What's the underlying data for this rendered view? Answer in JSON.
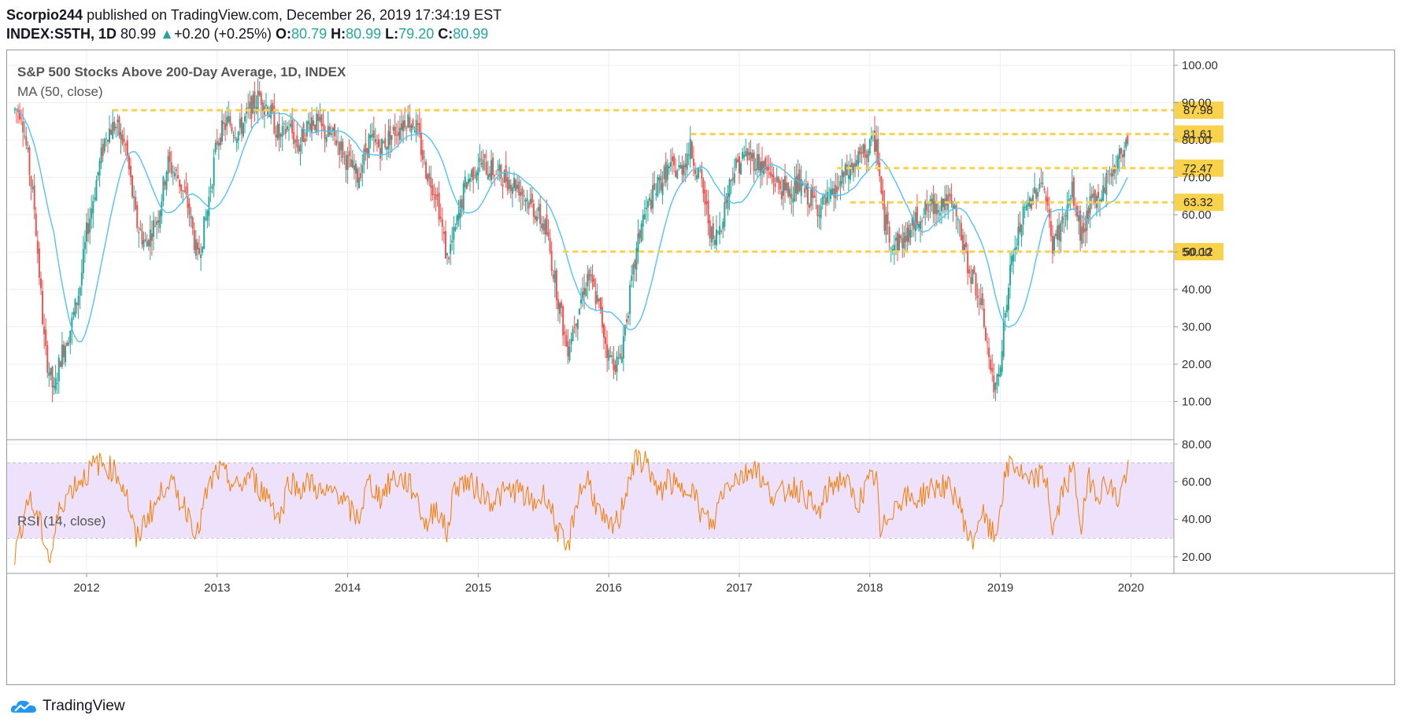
{
  "header": {
    "author": "Scorpio244",
    "published": "published on TradingView.com, December 26, 2019 17:34:19 EST",
    "symbol": "INDEX:S5TH, 1D",
    "last": "80.99",
    "change_arrow": "▲",
    "change": "+0.20 (+0.25%)",
    "o_label": "O:",
    "o": "80.79",
    "h_label": "H:",
    "h": "80.99",
    "l_label": "L:",
    "l": "79.20",
    "c_label": "C:",
    "c": "80.99"
  },
  "brand": {
    "name": "TradingView",
    "icon": "tradingview-cloud-icon"
  },
  "colors": {
    "up": "#26a69a",
    "down": "#ef5350",
    "ma": "#4fc3f7",
    "level": "#f9d24c",
    "rsi": "#f57c00",
    "rsi_band": "#ede1fb"
  },
  "chart_data": [
    {
      "type": "candlestick",
      "title": "S&P 500 Stocks Above 200-Day Average, 1D, INDEX",
      "indicator": "MA (50, close)",
      "x_ticks": [
        "2012",
        "2013",
        "2014",
        "2015",
        "2016",
        "2017",
        "2018",
        "2019",
        "2020"
      ],
      "ylim": [
        0,
        104
      ],
      "y_ticks": [
        "100.00",
        "90.00",
        "80.00",
        "70.00",
        "60.00",
        "50.00",
        "40.00",
        "30.00",
        "20.00",
        "10.00"
      ],
      "horizontal_levels": [
        {
          "value": 87.98,
          "label": "87.98",
          "from": 2012.2
        },
        {
          "value": 81.61,
          "label": "81.61",
          "from": 2016.63
        },
        {
          "value": 72.47,
          "label": "72.47",
          "from": 2017.75
        },
        {
          "value": 63.32,
          "label": "63.32",
          "from": 2017.85
        },
        {
          "value": 50.12,
          "label": "50.12",
          "from": 2015.65
        }
      ],
      "series_points": [
        [
          2011.5,
          88
        ],
        [
          2011.6,
          62
        ],
        [
          2011.68,
          24
        ],
        [
          2011.75,
          12
        ],
        [
          2011.8,
          22
        ],
        [
          2011.88,
          30
        ],
        [
          2011.95,
          41
        ],
        [
          2012.0,
          55
        ],
        [
          2012.08,
          70
        ],
        [
          2012.15,
          82
        ],
        [
          2012.22,
          84
        ],
        [
          2012.3,
          78
        ],
        [
          2012.38,
          58
        ],
        [
          2012.45,
          52
        ],
        [
          2012.55,
          60
        ],
        [
          2012.62,
          74
        ],
        [
          2012.7,
          70
        ],
        [
          2012.78,
          62
        ],
        [
          2012.85,
          48
        ],
        [
          2012.92,
          60
        ],
        [
          2013.0,
          80
        ],
        [
          2013.08,
          85
        ],
        [
          2013.16,
          82
        ],
        [
          2013.25,
          88
        ],
        [
          2013.33,
          92
        ],
        [
          2013.4,
          88
        ],
        [
          2013.48,
          80
        ],
        [
          2013.55,
          84
        ],
        [
          2013.62,
          78
        ],
        [
          2013.72,
          86
        ],
        [
          2013.82,
          82
        ],
        [
          2013.92,
          80
        ],
        [
          2014.0,
          74
        ],
        [
          2014.08,
          70
        ],
        [
          2014.16,
          80
        ],
        [
          2014.25,
          78
        ],
        [
          2014.35,
          82
        ],
        [
          2014.45,
          86
        ],
        [
          2014.52,
          84
        ],
        [
          2014.6,
          72
        ],
        [
          2014.68,
          66
        ],
        [
          2014.76,
          48
        ],
        [
          2014.82,
          55
        ],
        [
          2014.9,
          68
        ],
        [
          2015.0,
          74
        ],
        [
          2015.1,
          72
        ],
        [
          2015.2,
          70
        ],
        [
          2015.3,
          68
        ],
        [
          2015.42,
          62
        ],
        [
          2015.52,
          56
        ],
        [
          2015.6,
          40
        ],
        [
          2015.68,
          24
        ],
        [
          2015.76,
          34
        ],
        [
          2015.84,
          44
        ],
        [
          2015.92,
          36
        ],
        [
          2016.0,
          22
        ],
        [
          2016.08,
          20
        ],
        [
          2016.16,
          38
        ],
        [
          2016.25,
          58
        ],
        [
          2016.35,
          66
        ],
        [
          2016.45,
          72
        ],
        [
          2016.55,
          72
        ],
        [
          2016.62,
          78
        ],
        [
          2016.7,
          70
        ],
        [
          2016.8,
          52
        ],
        [
          2016.86,
          58
        ],
        [
          2016.95,
          72
        ],
        [
          2017.05,
          76
        ],
        [
          2017.15,
          74
        ],
        [
          2017.25,
          70
        ],
        [
          2017.35,
          66
        ],
        [
          2017.45,
          68
        ],
        [
          2017.55,
          64
        ],
        [
          2017.62,
          62
        ],
        [
          2017.7,
          64
        ],
        [
          2017.8,
          70
        ],
        [
          2017.9,
          74
        ],
        [
          2018.0,
          78
        ],
        [
          2018.05,
          80
        ],
        [
          2018.1,
          60
        ],
        [
          2018.18,
          52
        ],
        [
          2018.28,
          54
        ],
        [
          2018.38,
          60
        ],
        [
          2018.48,
          62
        ],
        [
          2018.58,
          64
        ],
        [
          2018.66,
          60
        ],
        [
          2018.74,
          48
        ],
        [
          2018.82,
          40
        ],
        [
          2018.88,
          30
        ],
        [
          2018.95,
          12
        ],
        [
          2019.0,
          22
        ],
        [
          2019.08,
          46
        ],
        [
          2019.16,
          58
        ],
        [
          2019.26,
          66
        ],
        [
          2019.32,
          70
        ],
        [
          2019.4,
          52
        ],
        [
          2019.48,
          58
        ],
        [
          2019.55,
          66
        ],
        [
          2019.62,
          54
        ],
        [
          2019.68,
          62
        ],
        [
          2019.75,
          64
        ],
        [
          2019.82,
          70
        ],
        [
          2019.9,
          74
        ],
        [
          2019.97,
          81
        ]
      ]
    },
    {
      "type": "line",
      "indicator": "RSI (14, close)",
      "ylim": [
        12,
        82
      ],
      "y_ticks": [
        "80.00",
        "60.00",
        "40.00",
        "20.00"
      ],
      "band": [
        30,
        70
      ],
      "series_points": [
        [
          2011.45,
          20
        ],
        [
          2011.55,
          52
        ],
        [
          2011.65,
          36
        ],
        [
          2011.72,
          18
        ],
        [
          2011.8,
          48
        ],
        [
          2011.9,
          58
        ],
        [
          2012.0,
          64
        ],
        [
          2012.08,
          70
        ],
        [
          2012.15,
          68
        ],
        [
          2012.22,
          66
        ],
        [
          2012.3,
          55
        ],
        [
          2012.38,
          28
        ],
        [
          2012.45,
          40
        ],
        [
          2012.55,
          50
        ],
        [
          2012.62,
          62
        ],
        [
          2012.7,
          52
        ],
        [
          2012.78,
          44
        ],
        [
          2012.85,
          32
        ],
        [
          2012.92,
          54
        ],
        [
          2013.0,
          66
        ],
        [
          2013.08,
          62
        ],
        [
          2013.16,
          56
        ],
        [
          2013.25,
          64
        ],
        [
          2013.33,
          56
        ],
        [
          2013.4,
          52
        ],
        [
          2013.48,
          40
        ],
        [
          2013.55,
          62
        ],
        [
          2013.62,
          56
        ],
        [
          2013.72,
          60
        ],
        [
          2013.82,
          52
        ],
        [
          2013.92,
          56
        ],
        [
          2014.0,
          46
        ],
        [
          2014.08,
          40
        ],
        [
          2014.16,
          60
        ],
        [
          2014.25,
          52
        ],
        [
          2014.35,
          62
        ],
        [
          2014.45,
          60
        ],
        [
          2014.52,
          54
        ],
        [
          2014.6,
          36
        ],
        [
          2014.68,
          48
        ],
        [
          2014.76,
          32
        ],
        [
          2014.82,
          58
        ],
        [
          2014.9,
          60
        ],
        [
          2015.0,
          56
        ],
        [
          2015.1,
          50
        ],
        [
          2015.2,
          54
        ],
        [
          2015.3,
          56
        ],
        [
          2015.42,
          48
        ],
        [
          2015.52,
          54
        ],
        [
          2015.6,
          36
        ],
        [
          2015.68,
          22
        ],
        [
          2015.76,
          52
        ],
        [
          2015.84,
          62
        ],
        [
          2015.92,
          44
        ],
        [
          2016.0,
          34
        ],
        [
          2016.08,
          40
        ],
        [
          2016.16,
          64
        ],
        [
          2016.22,
          72
        ],
        [
          2016.3,
          70
        ],
        [
          2016.38,
          52
        ],
        [
          2016.45,
          62
        ],
        [
          2016.55,
          54
        ],
        [
          2016.62,
          60
        ],
        [
          2016.7,
          44
        ],
        [
          2016.8,
          36
        ],
        [
          2016.86,
          54
        ],
        [
          2016.95,
          62
        ],
        [
          2017.05,
          64
        ],
        [
          2017.12,
          70
        ],
        [
          2017.2,
          56
        ],
        [
          2017.3,
          52
        ],
        [
          2017.4,
          58
        ],
        [
          2017.5,
          54
        ],
        [
          2017.6,
          42
        ],
        [
          2017.7,
          58
        ],
        [
          2017.8,
          62
        ],
        [
          2017.9,
          48
        ],
        [
          2018.0,
          60
        ],
        [
          2018.05,
          64
        ],
        [
          2018.08,
          30
        ],
        [
          2018.15,
          44
        ],
        [
          2018.25,
          52
        ],
        [
          2018.35,
          50
        ],
        [
          2018.45,
          56
        ],
        [
          2018.55,
          58
        ],
        [
          2018.65,
          54
        ],
        [
          2018.72,
          40
        ],
        [
          2018.78,
          26
        ],
        [
          2018.85,
          44
        ],
        [
          2018.92,
          34
        ],
        [
          2018.96,
          30
        ],
        [
          2019.02,
          56
        ],
        [
          2019.08,
          72
        ],
        [
          2019.14,
          66
        ],
        [
          2019.22,
          58
        ],
        [
          2019.3,
          64
        ],
        [
          2019.36,
          60
        ],
        [
          2019.4,
          32
        ],
        [
          2019.48,
          56
        ],
        [
          2019.56,
          66
        ],
        [
          2019.62,
          36
        ],
        [
          2019.68,
          62
        ],
        [
          2019.75,
          54
        ],
        [
          2019.82,
          60
        ],
        [
          2019.9,
          50
        ],
        [
          2019.97,
          66
        ]
      ]
    }
  ]
}
